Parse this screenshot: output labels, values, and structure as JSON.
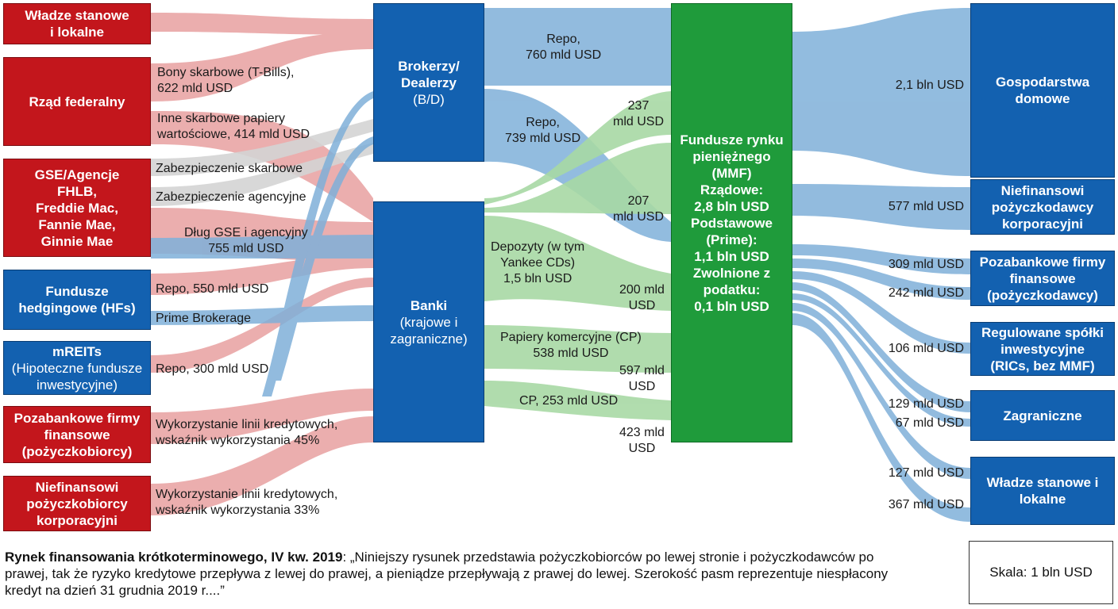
{
  "colors": {
    "borrower_red": "#c3161c",
    "intermediary_blue": "#1361b0",
    "mmf_green": "#1f9b3b",
    "flow_red": "#e8a0a0",
    "flow_blue": "#7fb0d9",
    "flow_green": "#a8d9a5",
    "flow_gray": "#d4d4d4"
  },
  "borrowers": [
    {
      "lines": [
        "Władze stanowe",
        "i lokalne"
      ]
    },
    {
      "lines": [
        "Rząd federalny"
      ]
    },
    {
      "lines": [
        "GSE/Agencje",
        "FHLB,",
        "Freddie Mac,",
        "Fannie Mae,",
        "Ginnie Mae"
      ]
    },
    {
      "lines": [
        "Fundusze",
        "hedgingowe (HFs)"
      ]
    },
    {
      "title": "mREITs",
      "lines": [
        "(Hipoteczne fundusze",
        "inwestycyjne)"
      ]
    },
    {
      "lines": [
        "Pozabankowe firmy",
        "finansowe",
        "(pożyczkobiorcy)"
      ]
    },
    {
      "lines": [
        "Niefinansowi",
        "pożyczkobiorcy",
        "korporacyjni"
      ]
    }
  ],
  "intermediaries": {
    "dealers": {
      "lines": [
        "Brokerzy/",
        "Dealerzy",
        "(B/D)"
      ]
    },
    "banks": {
      "title": "Banki",
      "lines": [
        "(krajowe i",
        "zagraniczne)"
      ]
    }
  },
  "mmf": {
    "lines": [
      "Fundusze rynku",
      "pieniężnego",
      "(MMF)",
      "Rządowe:",
      "2,8 bln USD",
      "Podstawowe",
      "(Prime):",
      "1,1 bln USD",
      "Zwolnione z",
      "podatku:",
      "0,1 bln USD"
    ]
  },
  "lenders": [
    {
      "lines": [
        "Gospodarstwa",
        "domowe"
      ]
    },
    {
      "lines": [
        "Niefinansowi",
        "pożyczkodawcy",
        "korporacyjni"
      ]
    },
    {
      "lines": [
        "Pozabankowe firmy",
        "finansowe",
        "(pożyczkodawcy)"
      ]
    },
    {
      "lines": [
        "Regulowane spółki",
        "inwestycyjne",
        "(RICs, bez MMF)"
      ]
    },
    {
      "lines": [
        "Zagraniczne"
      ]
    },
    {
      "lines": [
        "Władze stanowe i",
        "lokalne"
      ]
    }
  ],
  "flow_labels": {
    "tbills": [
      "Bony skarbowe (T-Bills),",
      "622 mld USD"
    ],
    "other_treasury": [
      "Inne skarbowe papiery",
      "wartościowe, 414 mld USD"
    ],
    "treasury_collateral": [
      "Zabezpieczenie skarbowe"
    ],
    "agency_collateral": [
      "Zabezpieczenie agencyjne"
    ],
    "gse_debt": [
      "Dług GSE i agencyjny",
      "755 mld USD"
    ],
    "hf_repo": [
      "Repo, 550 mld USD"
    ],
    "prime_brokerage": [
      "Prime Brokerage"
    ],
    "mreit_repo": [
      "Repo, 300 mld USD"
    ],
    "credit_lines_45": [
      "Wykorzystanie linii kredytowych,",
      "wskaźnik wykorzystania 45%"
    ],
    "credit_lines_33": [
      "Wykorzystanie linii kredytowych,",
      "wskaźnik wykorzystania 33%"
    ],
    "repo_760": [
      "Repo,",
      "760 mld USD"
    ],
    "repo_739": [
      "Repo,",
      "739 mld USD"
    ],
    "deposits": [
      "Depozyty (w tym",
      "Yankee CDs)",
      "1,5 bln USD"
    ],
    "cp_538": [
      "Papiery komercyjne (CP)",
      "538 mld USD"
    ],
    "cp_253": [
      "CP, 253 mld USD"
    ],
    "v237": [
      "237",
      "mld USD"
    ],
    "v207": [
      "207",
      "mld USD"
    ],
    "v200": [
      "200 mld",
      "USD"
    ],
    "v597": [
      "597 mld",
      "USD"
    ],
    "v423": [
      "423 mld",
      "USD"
    ],
    "households": [
      "2,1 bln USD"
    ],
    "nonfin": [
      "577 mld USD"
    ],
    "nbfi_309": [
      "309 mld USD"
    ],
    "nbfi_242": [
      "242 mld USD"
    ],
    "ric_106": [
      "106 mld USD"
    ],
    "foreign_129": [
      "129 mld USD"
    ],
    "foreign_67": [
      "67 mld USD"
    ],
    "state_127": [
      "127 mld USD"
    ],
    "state_367": [
      "367 mld USD"
    ]
  },
  "caption": {
    "bold": "Rynek finansowania krótkoterminowego, IV kw. 2019",
    "text": ": „Niniejszy rysunek przedstawia pożyczkobiorców po lewej stronie i pożyczkodawców po prawej, tak że ryzyko kredytowe przepływa z lewej do prawej, a pieniądze przepływają z prawej do lewej. Szerokość pasm reprezentuje niespłacony kredyt na dzień 31 grudnia 2019 r....”"
  },
  "scale": "Skala: 1 bln USD"
}
